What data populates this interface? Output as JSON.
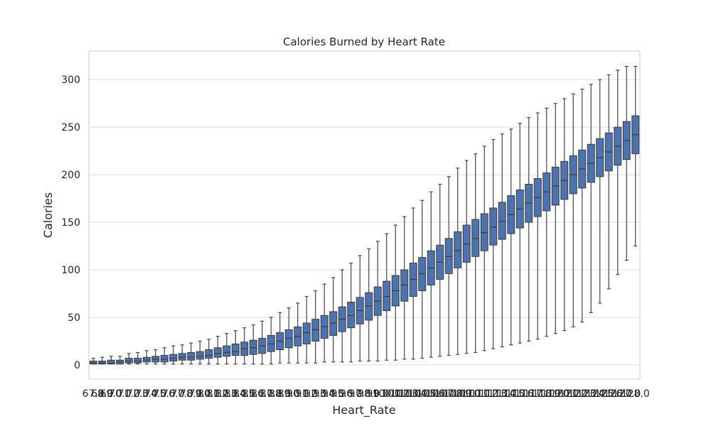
{
  "chart_data": {
    "type": "boxplot",
    "title": "Calories Burned by Heart Rate",
    "xlabel": "Heart_Rate",
    "ylabel": "Calories",
    "ylim": [
      -15,
      330
    ],
    "yticks": [
      0,
      50,
      100,
      150,
      200,
      250,
      300
    ],
    "grid": "y",
    "box_color": "#4c72b0",
    "categories": [
      "67.0",
      "68.0",
      "69.0",
      "70.0",
      "71.0",
      "72.0",
      "73.0",
      "74.0",
      "75.0",
      "76.0",
      "77.0",
      "78.0",
      "79.0",
      "80.0",
      "81.0",
      "82.0",
      "83.0",
      "84.0",
      "85.0",
      "86.0",
      "87.0",
      "88.0",
      "89.0",
      "90.0",
      "91.0",
      "92.0",
      "93.0",
      "94.0",
      "95.0",
      "96.0",
      "97.0",
      "98.0",
      "99.0",
      "100.0",
      "101.0",
      "102.0",
      "103.0",
      "104.0",
      "105.0",
      "106.0",
      "107.0",
      "108.0",
      "109.0",
      "110.0",
      "111.0",
      "112.0",
      "113.0",
      "114.0",
      "115.0",
      "116.0",
      "117.0",
      "118.0",
      "119.0",
      "120.0",
      "121.0",
      "122.0",
      "123.0",
      "124.0",
      "125.0",
      "126.0",
      "127.0",
      "128.0"
    ],
    "boxes": [
      {
        "q1": 1,
        "med": 2,
        "q3": 4,
        "lo": 1,
        "hi": 7
      },
      {
        "q1": 1,
        "med": 2,
        "q3": 4,
        "lo": 1,
        "hi": 8
      },
      {
        "q1": 1,
        "med": 2,
        "q3": 5,
        "lo": 1,
        "hi": 9
      },
      {
        "q1": 1,
        "med": 3,
        "q3": 5,
        "lo": 1,
        "hi": 9
      },
      {
        "q1": 2,
        "med": 4,
        "q3": 7,
        "lo": 1,
        "hi": 12
      },
      {
        "q1": 2,
        "med": 4,
        "q3": 7,
        "lo": 1,
        "hi": 13
      },
      {
        "q1": 3,
        "med": 5,
        "q3": 8,
        "lo": 1,
        "hi": 15
      },
      {
        "q1": 3,
        "med": 6,
        "q3": 9,
        "lo": 1,
        "hi": 16
      },
      {
        "q1": 3,
        "med": 6,
        "q3": 10,
        "lo": 1,
        "hi": 18
      },
      {
        "q1": 4,
        "med": 7,
        "q3": 11,
        "lo": 1,
        "hi": 20
      },
      {
        "q1": 5,
        "med": 8,
        "q3": 12,
        "lo": 1,
        "hi": 21
      },
      {
        "q1": 5,
        "med": 8,
        "q3": 13,
        "lo": 1,
        "hi": 23
      },
      {
        "q1": 6,
        "med": 9,
        "q3": 14,
        "lo": 1,
        "hi": 25
      },
      {
        "q1": 7,
        "med": 10,
        "q3": 16,
        "lo": 1,
        "hi": 27
      },
      {
        "q1": 8,
        "med": 12,
        "q3": 18,
        "lo": 1,
        "hi": 30
      },
      {
        "q1": 9,
        "med": 13,
        "q3": 20,
        "lo": 1,
        "hi": 33
      },
      {
        "q1": 10,
        "med": 14,
        "q3": 22,
        "lo": 1,
        "hi": 36
      },
      {
        "q1": 10,
        "med": 17,
        "q3": 24,
        "lo": 1,
        "hi": 39
      },
      {
        "q1": 11,
        "med": 18,
        "q3": 26,
        "lo": 1,
        "hi": 42
      },
      {
        "q1": 12,
        "med": 20,
        "q3": 28,
        "lo": 1,
        "hi": 46
      },
      {
        "q1": 14,
        "med": 22,
        "q3": 31,
        "lo": 1,
        "hi": 50
      },
      {
        "q1": 16,
        "med": 25,
        "q3": 34,
        "lo": 2,
        "hi": 55
      },
      {
        "q1": 18,
        "med": 28,
        "q3": 37,
        "lo": 2,
        "hi": 60
      },
      {
        "q1": 20,
        "med": 30,
        "q3": 40,
        "lo": 2,
        "hi": 65
      },
      {
        "q1": 22,
        "med": 34,
        "q3": 44,
        "lo": 2,
        "hi": 72
      },
      {
        "q1": 25,
        "med": 37,
        "q3": 48,
        "lo": 2,
        "hi": 78
      },
      {
        "q1": 28,
        "med": 40,
        "q3": 52,
        "lo": 3,
        "hi": 85
      },
      {
        "q1": 31,
        "med": 44,
        "q3": 56,
        "lo": 3,
        "hi": 92
      },
      {
        "q1": 35,
        "med": 48,
        "q3": 61,
        "lo": 3,
        "hi": 100
      },
      {
        "q1": 39,
        "med": 52,
        "q3": 66,
        "lo": 3,
        "hi": 107
      },
      {
        "q1": 43,
        "med": 57,
        "q3": 71,
        "lo": 4,
        "hi": 115
      },
      {
        "q1": 47,
        "med": 62,
        "q3": 76,
        "lo": 4,
        "hi": 122
      },
      {
        "q1": 52,
        "med": 67,
        "q3": 82,
        "lo": 4,
        "hi": 130
      },
      {
        "q1": 57,
        "med": 72,
        "q3": 88,
        "lo": 5,
        "hi": 138
      },
      {
        "q1": 62,
        "med": 78,
        "q3": 94,
        "lo": 5,
        "hi": 147
      },
      {
        "q1": 67,
        "med": 84,
        "q3": 100,
        "lo": 6,
        "hi": 156
      },
      {
        "q1": 72,
        "med": 90,
        "q3": 107,
        "lo": 6,
        "hi": 165
      },
      {
        "q1": 78,
        "med": 96,
        "q3": 113,
        "lo": 7,
        "hi": 173
      },
      {
        "q1": 84,
        "med": 102,
        "q3": 120,
        "lo": 8,
        "hi": 182
      },
      {
        "q1": 90,
        "med": 108,
        "q3": 126,
        "lo": 9,
        "hi": 190
      },
      {
        "q1": 96,
        "med": 114,
        "q3": 133,
        "lo": 10,
        "hi": 198
      },
      {
        "q1": 102,
        "med": 120,
        "q3": 140,
        "lo": 11,
        "hi": 207
      },
      {
        "q1": 108,
        "med": 127,
        "q3": 147,
        "lo": 12,
        "hi": 215
      },
      {
        "q1": 114,
        "med": 133,
        "q3": 153,
        "lo": 13,
        "hi": 222
      },
      {
        "q1": 120,
        "med": 139,
        "q3": 159,
        "lo": 15,
        "hi": 230
      },
      {
        "q1": 126,
        "med": 145,
        "q3": 165,
        "lo": 17,
        "hi": 237
      },
      {
        "q1": 132,
        "med": 151,
        "q3": 171,
        "lo": 19,
        "hi": 243
      },
      {
        "q1": 138,
        "med": 158,
        "q3": 178,
        "lo": 21,
        "hi": 248
      },
      {
        "q1": 144,
        "med": 164,
        "q3": 184,
        "lo": 23,
        "hi": 254
      },
      {
        "q1": 150,
        "med": 170,
        "q3": 190,
        "lo": 25,
        "hi": 260
      },
      {
        "q1": 156,
        "med": 176,
        "q3": 196,
        "lo": 27,
        "hi": 265
      },
      {
        "q1": 162,
        "med": 182,
        "q3": 202,
        "lo": 30,
        "hi": 270
      },
      {
        "q1": 168,
        "med": 188,
        "q3": 208,
        "lo": 33,
        "hi": 275
      },
      {
        "q1": 174,
        "med": 194,
        "q3": 214,
        "lo": 36,
        "hi": 280
      },
      {
        "q1": 180,
        "med": 200,
        "q3": 220,
        "lo": 40,
        "hi": 285
      },
      {
        "q1": 186,
        "med": 206,
        "q3": 226,
        "lo": 45,
        "hi": 290
      },
      {
        "q1": 192,
        "med": 212,
        "q3": 232,
        "lo": 55,
        "hi": 295
      },
      {
        "q1": 198,
        "med": 218,
        "q3": 238,
        "lo": 65,
        "hi": 300
      },
      {
        "q1": 204,
        "med": 224,
        "q3": 244,
        "lo": 80,
        "hi": 305
      },
      {
        "q1": 210,
        "med": 230,
        "q3": 250,
        "lo": 95,
        "hi": 310
      },
      {
        "q1": 216,
        "med": 236,
        "q3": 256,
        "lo": 110,
        "hi": 314
      },
      {
        "q1": 222,
        "med": 242,
        "q3": 262,
        "lo": 125,
        "hi": 314
      }
    ]
  }
}
